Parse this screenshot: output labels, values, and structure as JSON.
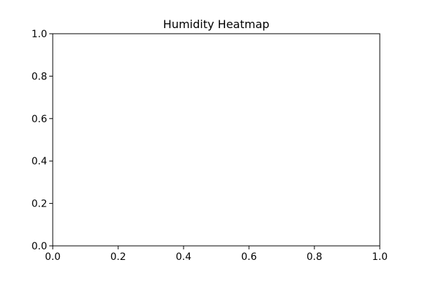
{
  "chart_data": {
    "type": "heatmap",
    "title": "Humidity Heatmap",
    "xlabel": "",
    "ylabel": "",
    "xlim": [
      0,
      1
    ],
    "ylim": [
      0,
      1
    ],
    "xticks": [
      0.0,
      0.2,
      0.4,
      0.6,
      0.8,
      1.0
    ],
    "yticks": [
      0.0,
      0.2,
      0.4,
      0.6,
      0.8,
      1.0
    ],
    "xtick_labels": [
      "0.0",
      "0.2",
      "0.4",
      "0.6",
      "0.8",
      "1.0"
    ],
    "ytick_labels": [
      "0.0",
      "0.2",
      "0.4",
      "0.6",
      "0.8",
      "1.0"
    ],
    "grid": false,
    "legend": "none",
    "values": []
  },
  "colors": {
    "axes": "#000000",
    "background": "#ffffff"
  }
}
